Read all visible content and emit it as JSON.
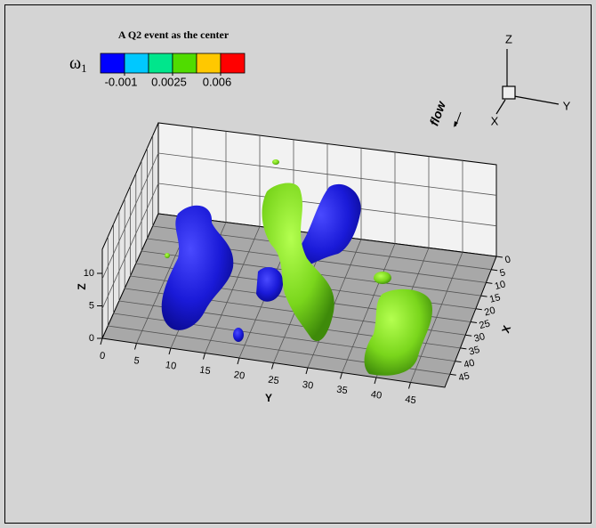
{
  "title": "A Q2 event as the center",
  "colorbar": {
    "label": "ω",
    "subscript": "1",
    "colors": [
      "#0000ff",
      "#00c8ff",
      "#00e68c",
      "#50dc00",
      "#ffc800",
      "#ff0000"
    ],
    "ticks": [
      -0.001,
      0.0025,
      0.006
    ]
  },
  "axes": {
    "z": {
      "title": "Z",
      "ticks": [
        0,
        5,
        10
      ]
    },
    "y": {
      "title": "Y",
      "ticks": [
        0,
        5,
        10,
        15,
        20,
        25,
        30,
        35,
        40,
        45
      ]
    },
    "x": {
      "title": "X",
      "ticks": [
        0,
        5,
        10,
        15,
        20,
        25,
        30,
        35,
        40,
        45
      ]
    }
  },
  "triad": {
    "z": "Z",
    "y": "Y",
    "x": "X"
  },
  "annotation": "flow"
}
